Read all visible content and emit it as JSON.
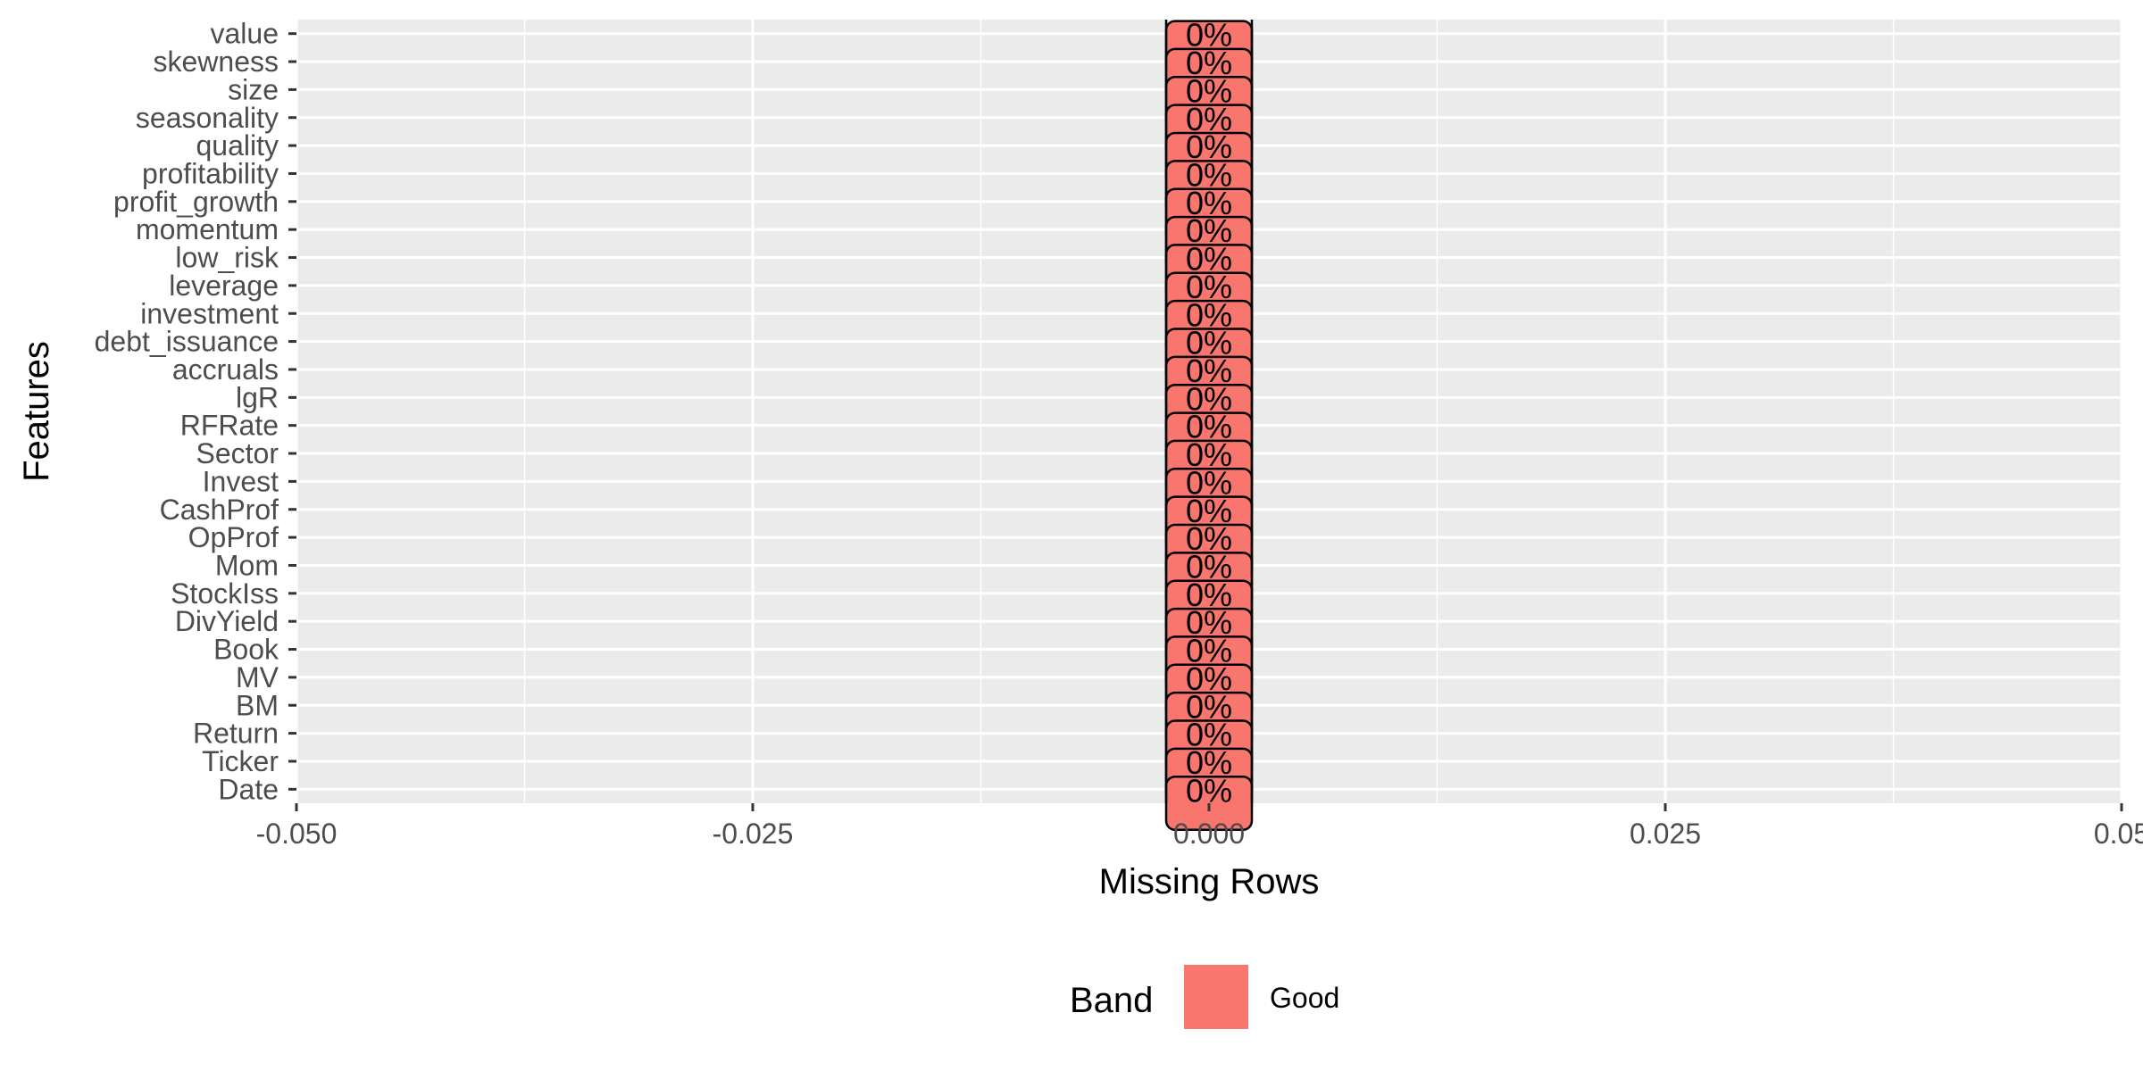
{
  "chart_data": {
    "type": "bar",
    "orientation": "horizontal",
    "categories": [
      "value",
      "skewness",
      "size",
      "seasonality",
      "quality",
      "profitability",
      "profit_growth",
      "momentum",
      "low_risk",
      "leverage",
      "investment",
      "debt_issuance",
      "accruals",
      "lgR",
      "RFRate",
      "Sector",
      "Invest",
      "CashProf",
      "OpProf",
      "Mom",
      "StockIss",
      "DivYield",
      "Book",
      "MV",
      "BM",
      "Return",
      "Ticker",
      "Date"
    ],
    "values": [
      0,
      0,
      0,
      0,
      0,
      0,
      0,
      0,
      0,
      0,
      0,
      0,
      0,
      0,
      0,
      0,
      0,
      0,
      0,
      0,
      0,
      0,
      0,
      0,
      0,
      0,
      0,
      0
    ],
    "data_labels": [
      "0%",
      "0%",
      "0%",
      "0%",
      "0%",
      "0%",
      "0%",
      "0%",
      "0%",
      "0%",
      "0%",
      "0%",
      "0%",
      "0%",
      "0%",
      "0%",
      "0%",
      "0%",
      "0%",
      "0%",
      "0%",
      "0%",
      "0%",
      "0%",
      "0%",
      "0%",
      "0%",
      "0%"
    ],
    "bands": [
      "Good",
      "Good",
      "Good",
      "Good",
      "Good",
      "Good",
      "Good",
      "Good",
      "Good",
      "Good",
      "Good",
      "Good",
      "Good",
      "Good",
      "Good",
      "Good",
      "Good",
      "Good",
      "Good",
      "Good",
      "Good",
      "Good",
      "Good",
      "Good",
      "Good",
      "Good",
      "Good",
      "Good"
    ],
    "xlabel": "Missing Rows",
    "ylabel": "Features",
    "xlim": [
      -0.05,
      0.05
    ],
    "xticks": [
      -0.05,
      -0.025,
      0,
      0.025,
      0.05
    ],
    "xtick_labels": [
      "-0.050",
      "-0.025",
      "0.000",
      "0.025",
      "0.05"
    ],
    "grid": true,
    "legend": {
      "title": "Band",
      "position": "bottom",
      "items": [
        {
          "label": "Good",
          "color": "#F8766D"
        }
      ]
    },
    "colors": {
      "panel": "#EBEBEB",
      "grid": "#FFFFFF",
      "bar_fill": "#F8766D",
      "bar_stroke": "#000000"
    }
  }
}
